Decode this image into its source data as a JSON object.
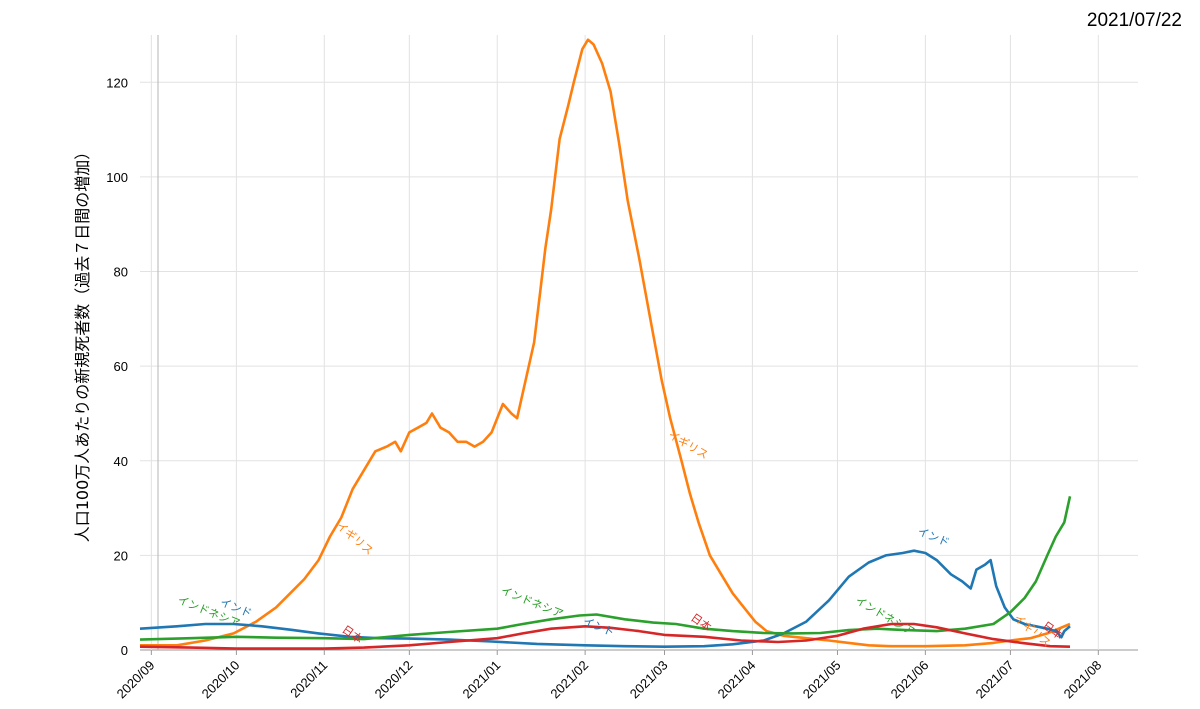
{
  "date_label": "2021/07/22",
  "chart_data": {
    "type": "line",
    "title": "",
    "xlabel": "",
    "ylabel": "人口100万人あたりの新規死者数（過去７日間の増加）",
    "x_range": [
      "2020-08-28",
      "2021-08-15"
    ],
    "ylim": [
      0,
      130
    ],
    "yticks": [
      0,
      20,
      40,
      60,
      80,
      100,
      120
    ],
    "xticks": [
      "2020/09",
      "2020/10",
      "2020/11",
      "2020/12",
      "2021/01",
      "2021/02",
      "2021/03",
      "2021/04",
      "2021/05",
      "2021/06",
      "2021/07",
      "2021/08"
    ],
    "grid": true,
    "series": [
      {
        "name": "イギリス",
        "color": "#ff7f0e",
        "points": [
          [
            "2020-08-28",
            1.0
          ],
          [
            "2020-09-10",
            1.0
          ],
          [
            "2020-09-20",
            2.0
          ],
          [
            "2020-09-30",
            3.5
          ],
          [
            "2020-10-08",
            6.0
          ],
          [
            "2020-10-15",
            9.0
          ],
          [
            "2020-10-20",
            12.0
          ],
          [
            "2020-10-25",
            15.0
          ],
          [
            "2020-10-30",
            19.0
          ],
          [
            "2020-11-03",
            24.0
          ],
          [
            "2020-11-07",
            28.0
          ],
          [
            "2020-11-11",
            34.0
          ],
          [
            "2020-11-15",
            38.0
          ],
          [
            "2020-11-19",
            42.0
          ],
          [
            "2020-11-23",
            43.0
          ],
          [
            "2020-11-26",
            44.0
          ],
          [
            "2020-11-28",
            42.0
          ],
          [
            "2020-12-01",
            46.0
          ],
          [
            "2020-12-04",
            47.0
          ],
          [
            "2020-12-07",
            48.0
          ],
          [
            "2020-12-09",
            50.0
          ],
          [
            "2020-12-12",
            47.0
          ],
          [
            "2020-12-15",
            46.0
          ],
          [
            "2020-12-18",
            44.0
          ],
          [
            "2020-12-21",
            44.0
          ],
          [
            "2020-12-24",
            43.0
          ],
          [
            "2020-12-27",
            44.0
          ],
          [
            "2020-12-30",
            46.0
          ],
          [
            "2021-01-03",
            52.0
          ],
          [
            "2021-01-06",
            50.0
          ],
          [
            "2021-01-08",
            49.0
          ],
          [
            "2021-01-11",
            57.0
          ],
          [
            "2021-01-14",
            65.0
          ],
          [
            "2021-01-16",
            75.0
          ],
          [
            "2021-01-18",
            85.0
          ],
          [
            "2021-01-20",
            93.0
          ],
          [
            "2021-01-23",
            108.0
          ],
          [
            "2021-01-26",
            115.0
          ],
          [
            "2021-01-28",
            120.0
          ],
          [
            "2021-01-31",
            127.0
          ],
          [
            "2021-02-02",
            129.0
          ],
          [
            "2021-02-04",
            128.0
          ],
          [
            "2021-02-07",
            124.0
          ],
          [
            "2021-02-10",
            118.0
          ],
          [
            "2021-02-13",
            107.0
          ],
          [
            "2021-02-16",
            95.0
          ],
          [
            "2021-02-20",
            83.0
          ],
          [
            "2021-02-24",
            70.0
          ],
          [
            "2021-02-28",
            57.0
          ],
          [
            "2021-03-03",
            49.0
          ],
          [
            "2021-03-07",
            40.0
          ],
          [
            "2021-03-10",
            33.0
          ],
          [
            "2021-03-13",
            27.0
          ],
          [
            "2021-03-17",
            20.0
          ],
          [
            "2021-03-21",
            16.0
          ],
          [
            "2021-03-25",
            12.0
          ],
          [
            "2021-03-29",
            9.0
          ],
          [
            "2021-04-02",
            6.0
          ],
          [
            "2021-04-06",
            4.0
          ],
          [
            "2021-04-12",
            3.0
          ],
          [
            "2021-04-20",
            2.5
          ],
          [
            "2021-04-28",
            2.0
          ],
          [
            "2021-05-05",
            1.5
          ],
          [
            "2021-05-12",
            1.0
          ],
          [
            "2021-05-20",
            0.8
          ],
          [
            "2021-06-01",
            0.8
          ],
          [
            "2021-06-15",
            1.0
          ],
          [
            "2021-06-25",
            1.5
          ],
          [
            "2021-07-01",
            2.0
          ],
          [
            "2021-07-08",
            2.5
          ],
          [
            "2021-07-14",
            3.5
          ],
          [
            "2021-07-22",
            5.5
          ]
        ]
      },
      {
        "name": "インド",
        "color": "#1f77b4",
        "points": [
          [
            "2020-08-28",
            4.5
          ],
          [
            "2020-09-10",
            5.0
          ],
          [
            "2020-09-20",
            5.5
          ],
          [
            "2020-09-30",
            5.5
          ],
          [
            "2020-10-10",
            5.0
          ],
          [
            "2020-10-20",
            4.3
          ],
          [
            "2020-10-30",
            3.5
          ],
          [
            "2020-11-10",
            2.8
          ],
          [
            "2020-11-20",
            2.5
          ],
          [
            "2020-12-01",
            2.4
          ],
          [
            "2020-12-15",
            2.2
          ],
          [
            "2020-12-30",
            1.8
          ],
          [
            "2021-01-15",
            1.3
          ],
          [
            "2021-02-01",
            1.0
          ],
          [
            "2021-02-15",
            0.8
          ],
          [
            "2021-03-01",
            0.7
          ],
          [
            "2021-03-15",
            0.8
          ],
          [
            "2021-03-25",
            1.2
          ],
          [
            "2021-04-05",
            2.0
          ],
          [
            "2021-04-12",
            3.5
          ],
          [
            "2021-04-20",
            6.0
          ],
          [
            "2021-04-28",
            10.5
          ],
          [
            "2021-05-05",
            15.5
          ],
          [
            "2021-05-12",
            18.5
          ],
          [
            "2021-05-18",
            20.0
          ],
          [
            "2021-05-24",
            20.5
          ],
          [
            "2021-05-28",
            21.0
          ],
          [
            "2021-06-01",
            20.5
          ],
          [
            "2021-06-05",
            19.0
          ],
          [
            "2021-06-10",
            16.0
          ],
          [
            "2021-06-14",
            14.5
          ],
          [
            "2021-06-17",
            13.0
          ],
          [
            "2021-06-19",
            17.0
          ],
          [
            "2021-06-22",
            18.0
          ],
          [
            "2021-06-24",
            19.0
          ],
          [
            "2021-06-26",
            13.5
          ],
          [
            "2021-06-29",
            9.0
          ],
          [
            "2021-07-02",
            6.5
          ],
          [
            "2021-07-06",
            5.5
          ],
          [
            "2021-07-10",
            5.0
          ],
          [
            "2021-07-14",
            4.5
          ],
          [
            "2021-07-17",
            4.0
          ],
          [
            "2021-07-19",
            2.7
          ],
          [
            "2021-07-20",
            4.0
          ],
          [
            "2021-07-22",
            5.0
          ]
        ]
      },
      {
        "name": "インドネシア",
        "color": "#2ca02c",
        "points": [
          [
            "2020-08-28",
            2.2
          ],
          [
            "2020-09-15",
            2.5
          ],
          [
            "2020-10-01",
            2.8
          ],
          [
            "2020-10-15",
            2.6
          ],
          [
            "2020-11-01",
            2.5
          ],
          [
            "2020-11-15",
            2.3
          ],
          [
            "2020-12-01",
            3.2
          ],
          [
            "2020-12-15",
            3.8
          ],
          [
            "2021-01-01",
            4.5
          ],
          [
            "2021-01-10",
            5.5
          ],
          [
            "2021-01-20",
            6.5
          ],
          [
            "2021-01-30",
            7.3
          ],
          [
            "2021-02-05",
            7.5
          ],
          [
            "2021-02-15",
            6.5
          ],
          [
            "2021-02-25",
            5.8
          ],
          [
            "2021-03-05",
            5.5
          ],
          [
            "2021-03-15",
            4.5
          ],
          [
            "2021-03-25",
            4.0
          ],
          [
            "2021-04-05",
            3.6
          ],
          [
            "2021-04-15",
            3.5
          ],
          [
            "2021-04-25",
            3.6
          ],
          [
            "2021-05-05",
            4.2
          ],
          [
            "2021-05-15",
            4.5
          ],
          [
            "2021-05-25",
            4.2
          ],
          [
            "2021-06-05",
            4.0
          ],
          [
            "2021-06-15",
            4.5
          ],
          [
            "2021-06-25",
            5.5
          ],
          [
            "2021-07-01",
            8.0
          ],
          [
            "2021-07-06",
            11.0
          ],
          [
            "2021-07-10",
            14.5
          ],
          [
            "2021-07-14",
            20.0
          ],
          [
            "2021-07-17",
            24.0
          ],
          [
            "2021-07-20",
            27.0
          ],
          [
            "2021-07-22",
            32.5
          ]
        ]
      },
      {
        "name": "日本",
        "color": "#d62728",
        "points": [
          [
            "2020-08-28",
            0.7
          ],
          [
            "2020-09-15",
            0.5
          ],
          [
            "2020-10-01",
            0.3
          ],
          [
            "2020-10-15",
            0.3
          ],
          [
            "2020-11-01",
            0.3
          ],
          [
            "2020-11-15",
            0.5
          ],
          [
            "2020-12-01",
            1.0
          ],
          [
            "2020-12-15",
            1.7
          ],
          [
            "2021-01-01",
            2.5
          ],
          [
            "2021-01-10",
            3.5
          ],
          [
            "2021-01-20",
            4.5
          ],
          [
            "2021-02-01",
            5.0
          ],
          [
            "2021-02-10",
            4.7
          ],
          [
            "2021-02-20",
            4.0
          ],
          [
            "2021-03-01",
            3.2
          ],
          [
            "2021-03-15",
            2.8
          ],
          [
            "2021-03-28",
            2.0
          ],
          [
            "2021-04-10",
            1.7
          ],
          [
            "2021-04-20",
            2.0
          ],
          [
            "2021-05-01",
            3.0
          ],
          [
            "2021-05-10",
            4.5
          ],
          [
            "2021-05-20",
            5.5
          ],
          [
            "2021-05-28",
            5.5
          ],
          [
            "2021-06-05",
            4.8
          ],
          [
            "2021-06-15",
            3.5
          ],
          [
            "2021-06-25",
            2.3
          ],
          [
            "2021-07-05",
            1.5
          ],
          [
            "2021-07-15",
            0.8
          ],
          [
            "2021-07-22",
            0.7
          ]
        ]
      }
    ],
    "labels": [
      {
        "series": 2,
        "text": "インドネシア",
        "date": "2020-09-10",
        "value": 10,
        "angle": 22
      },
      {
        "series": 1,
        "text": "インド",
        "date": "2020-09-25",
        "value": 9.5,
        "angle": 22
      },
      {
        "series": 0,
        "text": "イギリス",
        "date": "2020-11-05",
        "value": 26,
        "angle": 40
      },
      {
        "series": 3,
        "text": "日本",
        "date": "2020-11-07",
        "value": 4.0,
        "angle": 35
      },
      {
        "series": 2,
        "text": "インドネシア",
        "date": "2021-01-02",
        "value": 12,
        "angle": 22
      },
      {
        "series": 1,
        "text": "インド",
        "date": "2021-01-31",
        "value": 5.5,
        "angle": 22
      },
      {
        "series": 0,
        "text": "イギリス",
        "date": "2021-03-02",
        "value": 45,
        "angle": 30
      },
      {
        "series": 3,
        "text": "日本",
        "date": "2021-03-10",
        "value": 6.5,
        "angle": 35
      },
      {
        "series": 2,
        "text": "インドネシア",
        "date": "2021-05-07",
        "value": 10,
        "angle": 30
      },
      {
        "series": 1,
        "text": "インド",
        "date": "2021-05-29",
        "value": 24.5,
        "angle": 22
      },
      {
        "series": 0,
        "text": "イギリス",
        "date": "2021-07-02",
        "value": 6.5,
        "angle": 40
      },
      {
        "series": 3,
        "text": "日本",
        "date": "2021-07-12",
        "value": 4.8,
        "angle": 35
      }
    ]
  }
}
